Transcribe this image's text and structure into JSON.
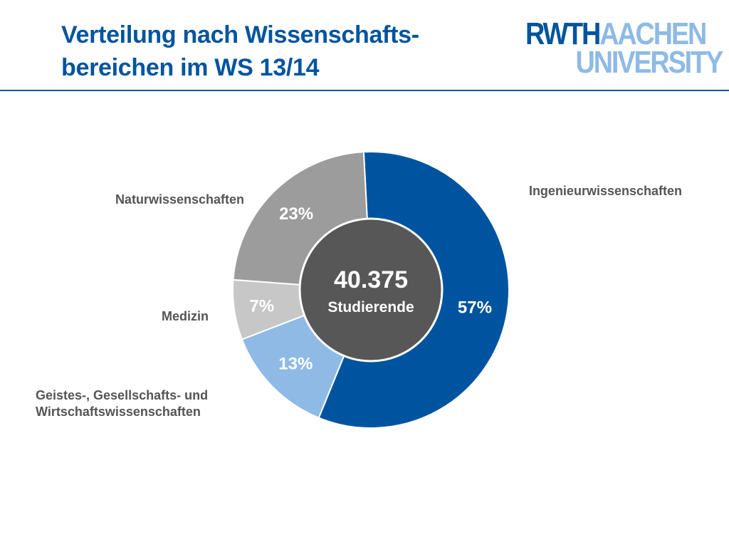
{
  "header": {
    "title_line1": "Verteilung nach Wissenschafts-",
    "title_line2": "bereichen im WS 13/14",
    "logo": {
      "part1": "RWTH",
      "part2": "AACHEN",
      "part3": "UNIVERSITY"
    }
  },
  "colors": {
    "brand_blue": "#00549f",
    "light_blue": "#8ebae5",
    "grey": "#9c9c9c",
    "light_grey": "#c7c7c7",
    "center": "#575757"
  },
  "chart_data": {
    "type": "pie",
    "title": "",
    "center": {
      "value": "40.375",
      "label": "Studierende"
    },
    "slices": [
      {
        "name": "Ingenieurwissenschaften",
        "value": 57,
        "label": "57%",
        "color": "#00549f"
      },
      {
        "name": "Geistes-, Gesellschafts- und Wirtschaftswissenschaften",
        "name_lines": [
          "Geistes-, Gesellschafts- und",
          "Wirtschaftswissenschaften"
        ],
        "value": 13,
        "label": "13%",
        "color": "#8ebae5"
      },
      {
        "name": "Medizin",
        "value": 7,
        "label": "7%",
        "color": "#c7c7c7"
      },
      {
        "name": "Naturwissenschaften",
        "value": 23,
        "label": "23%",
        "color": "#9c9c9c"
      }
    ]
  }
}
